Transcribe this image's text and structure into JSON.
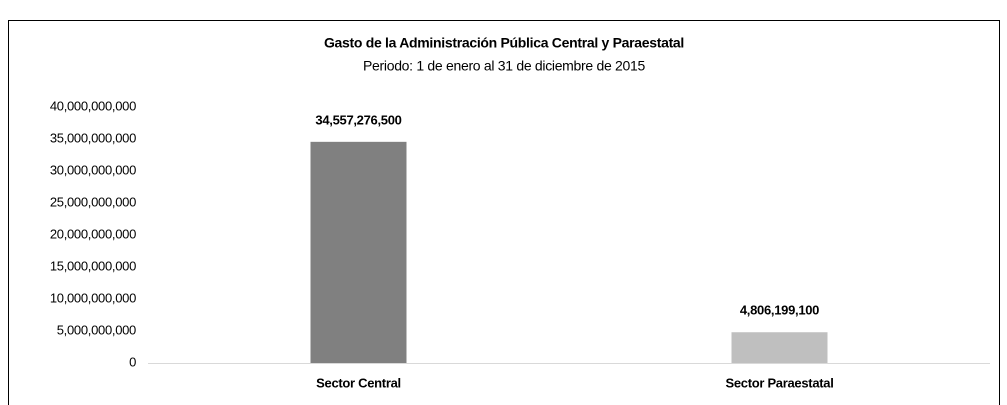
{
  "chart_data": {
    "type": "bar",
    "title": "Gasto de la Administración Pública Central y Paraestatal",
    "subtitle": "Periodo: 1 de enero al 31 de diciembre de 2015",
    "categories": [
      "Sector Central",
      "Sector Paraestatal"
    ],
    "values": [
      34557276500,
      4806199100
    ],
    "value_labels": [
      "34,557,276,500",
      "4,806,199,100"
    ],
    "colors": [
      "#808080",
      "#bfbfbf"
    ],
    "ylim": [
      0,
      40000000000
    ],
    "yticks": [
      0,
      {
        "value": 5000000000,
        "label": "5,000,000,000"
      },
      {
        "value": 10000000000,
        "label": "10,000,000,000"
      },
      {
        "value": 15000000000,
        "label": "15,000,000,000"
      },
      {
        "value": 20000000000,
        "label": "20,000,000,000"
      },
      {
        "value": 25000000000,
        "label": "25,000,000,000"
      },
      {
        "value": 30000000000,
        "label": "30,000,000,000"
      },
      {
        "value": 35000000000,
        "label": "35,000,000,000"
      },
      {
        "value": 40000000000,
        "label": "40,000,000,000"
      }
    ],
    "grid": false
  }
}
